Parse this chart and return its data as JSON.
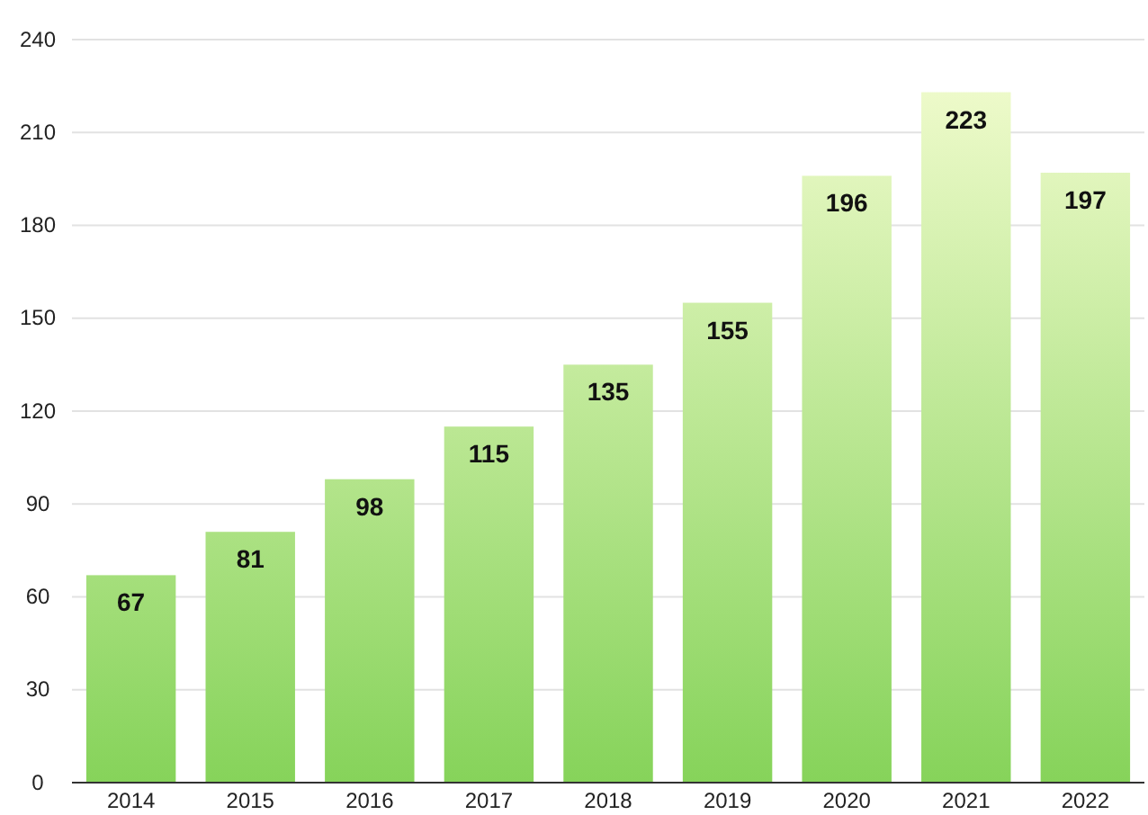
{
  "chart_data": {
    "type": "bar",
    "categories": [
      "2014",
      "2015",
      "2016",
      "2017",
      "2018",
      "2019",
      "2020",
      "2021",
      "2022"
    ],
    "values": [
      67,
      81,
      98,
      115,
      135,
      155,
      196,
      223,
      197
    ],
    "color": "#86d35a",
    "ylim": [
      0,
      240
    ],
    "yticks": [
      0,
      30,
      60,
      90,
      120,
      150,
      180,
      210,
      240
    ],
    "grid": "y",
    "data_labels": true
  }
}
